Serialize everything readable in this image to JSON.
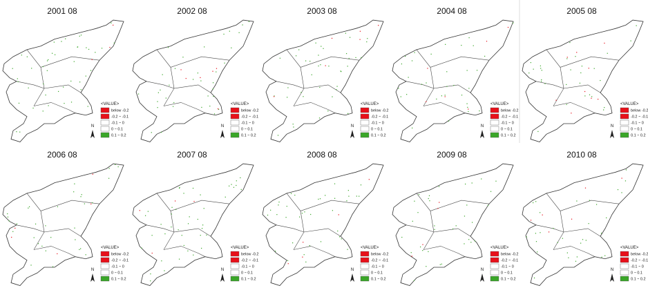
{
  "panels": [
    {
      "title": "2001 08"
    },
    {
      "title": "2002 08"
    },
    {
      "title": "2003 08"
    },
    {
      "title": "2004 08"
    },
    {
      "title": "2005 08"
    },
    {
      "title": "2006 08"
    },
    {
      "title": "2007 08"
    },
    {
      "title": "2008 08"
    },
    {
      "title": "2009 08"
    },
    {
      "title": "2010 08"
    }
  ],
  "legend": {
    "header": "<VALUE>",
    "north": "N",
    "items": [
      {
        "label": "below -0.2",
        "color": "#e8101a"
      },
      {
        "label": "-0.2 ~ -0.1",
        "color": "#e8101a"
      },
      {
        "label": "-0.1 ~ 0",
        "color": "#ffffff"
      },
      {
        "label": "0 ~ 0.1",
        "color": "#ffffff"
      },
      {
        "label": "0.1 ~ 0.2",
        "color": "#3aa628"
      }
    ]
  }
}
